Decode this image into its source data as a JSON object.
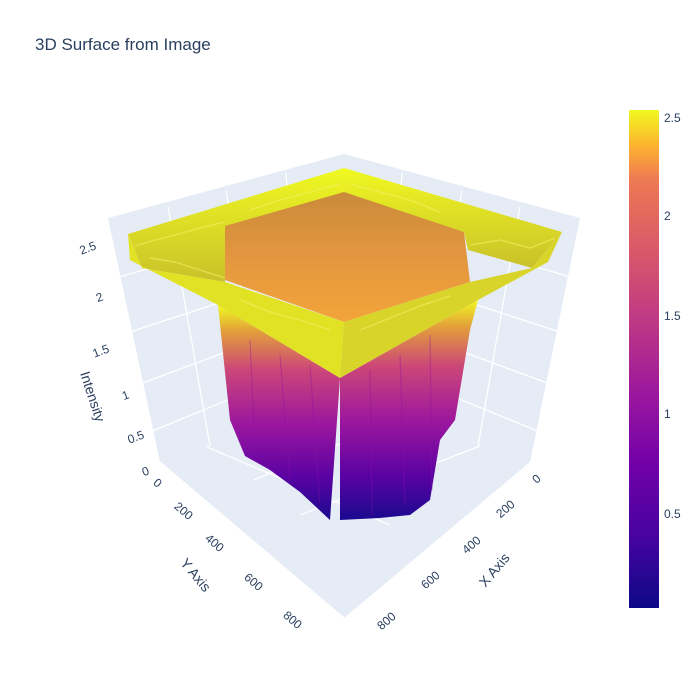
{
  "chart_data": {
    "type": "surface",
    "title": "3D Surface from Image",
    "x_axis": {
      "label": "X Axis",
      "ticks": [
        "0",
        "200",
        "400",
        "600",
        "800"
      ],
      "range": [
        0,
        800
      ]
    },
    "y_axis": {
      "label": "Y Axis",
      "ticks": [
        "0",
        "200",
        "400",
        "600",
        "800"
      ],
      "range": [
        0,
        800
      ]
    },
    "z_axis": {
      "label": "Intensity",
      "ticks": [
        "0",
        "0.5",
        "1",
        "1.5",
        "2",
        "2.5"
      ],
      "range": [
        0,
        2.6
      ]
    },
    "colorbar": {
      "ticks": [
        "0.5",
        "1",
        "1.5",
        "2",
        "2.5"
      ],
      "range": [
        0,
        2.6
      ],
      "colorscale": "plasma"
    },
    "surface_description": {
      "outer_ring_level": 2.5,
      "inner_square_level": 2.0,
      "inner_square_bounds": [
        200,
        600
      ],
      "bottom_deep_trough_level": 0.05
    },
    "colors": {
      "plot_bg": "#e5ecf6",
      "grid": "#ffffff",
      "text": "#2a3f5f"
    }
  }
}
